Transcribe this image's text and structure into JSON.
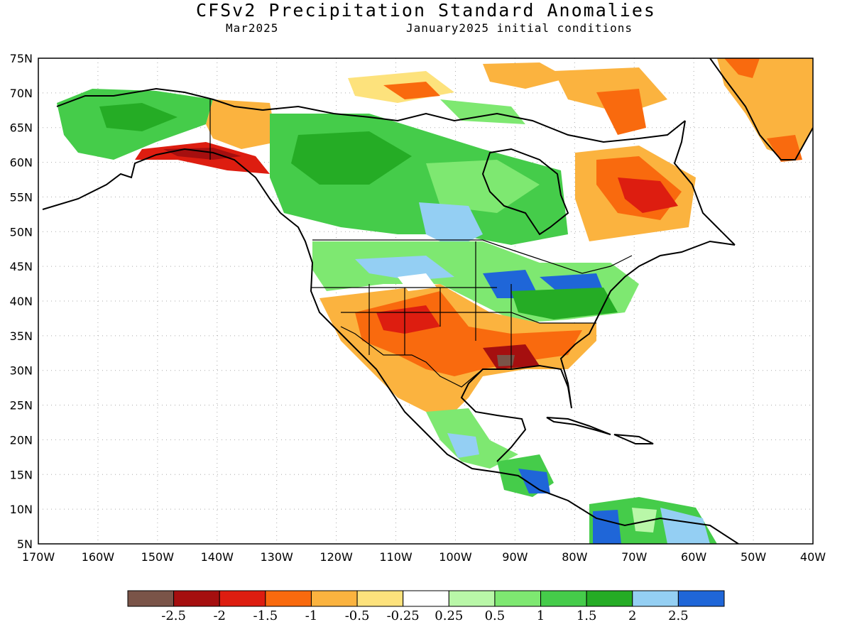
{
  "title": "CFSv2 Precipitation Standard Anomalies",
  "subtitle_left": "Mar2025",
  "subtitle_right": "January2025 initial conditions",
  "lat_labels": [
    "75N",
    "70N",
    "65N",
    "60N",
    "55N",
    "50N",
    "45N",
    "40N",
    "35N",
    "30N",
    "25N",
    "20N",
    "15N",
    "10N",
    "5N"
  ],
  "lon_labels": [
    "170W",
    "160W",
    "150W",
    "140W",
    "130W",
    "120W",
    "110W",
    "100W",
    "90W",
    "80W",
    "70W",
    "60W",
    "50W",
    "40W"
  ],
  "colorbar": {
    "colors": [
      "#7a5448",
      "#a50f0f",
      "#dd1d10",
      "#f96a0e",
      "#fbb33f",
      "#fde27c",
      "#ffffff",
      "#b9f7a8",
      "#7ee871",
      "#45cc4a",
      "#25ac25",
      "#94cff3",
      "#1f66d8"
    ],
    "labels": [
      "-2.5",
      "-2",
      "-1.5",
      "-1",
      "-0.5",
      "-0.25",
      "0.25",
      "0.5",
      "1",
      "1.5",
      "2",
      "2.5"
    ]
  }
}
